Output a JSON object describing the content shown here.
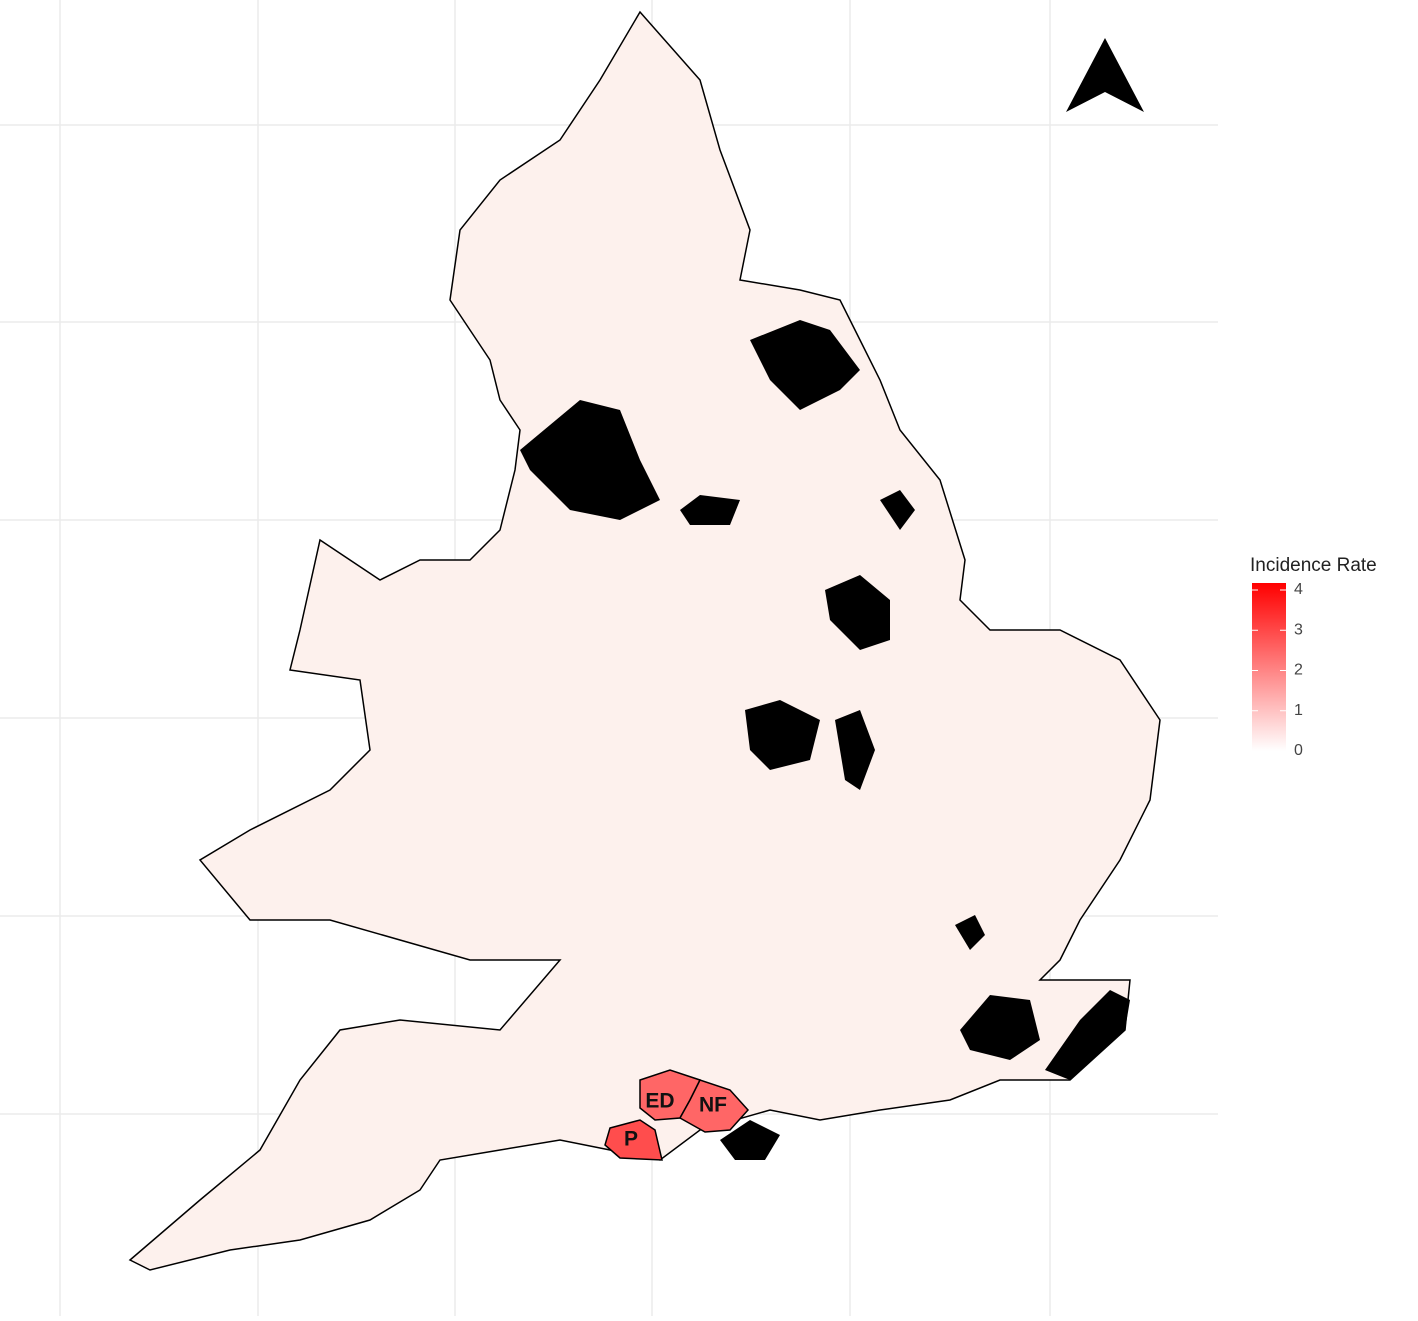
{
  "legend": {
    "title": "Incidence Rate",
    "ticks": [
      0,
      1,
      2,
      3,
      4
    ],
    "lim": [
      0,
      4
    ],
    "colors": [
      "#ffffff",
      "#ff0000"
    ]
  },
  "regions": [
    {
      "label": "ED",
      "value": 2.4
    },
    {
      "label": "NF",
      "value": 2.4
    },
    {
      "label": "P",
      "value": 2.8
    }
  ]
}
